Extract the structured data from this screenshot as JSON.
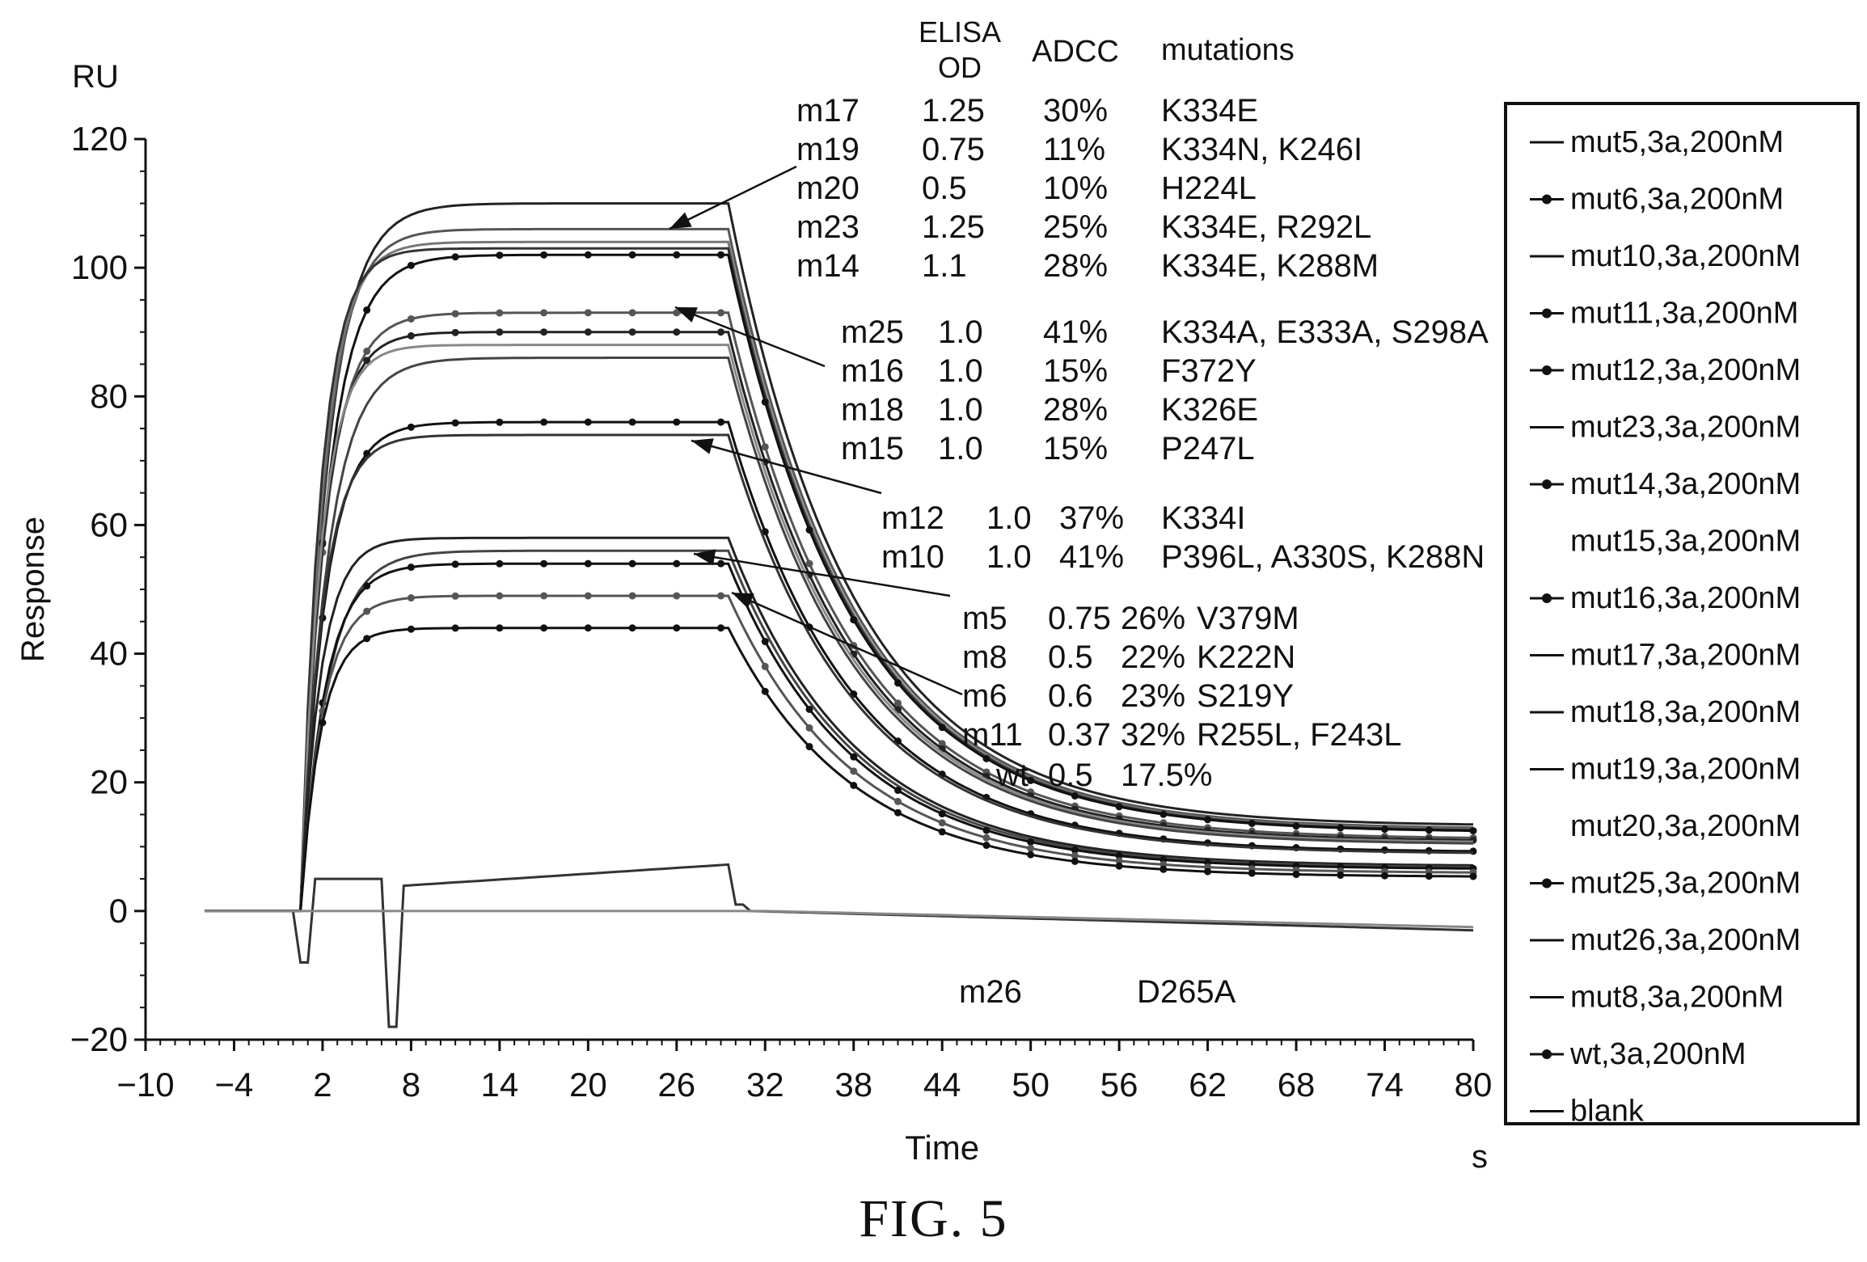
{
  "chart_data": {
    "type": "line",
    "xlabel": "Time",
    "x_unit": "s",
    "ylabel": "Response",
    "y_unit": "RU",
    "xlim": [
      -10,
      80
    ],
    "ylim": [
      -20,
      120
    ],
    "x_ticks": [
      -10,
      -4,
      2,
      8,
      14,
      20,
      26,
      32,
      38,
      44,
      50,
      56,
      62,
      68,
      74,
      80
    ],
    "y_ticks": [
      -20,
      0,
      20,
      40,
      60,
      80,
      100,
      120
    ],
    "legend_placement": "right",
    "legend": [
      "mut5,3a,200nM",
      "mut6,3a,200nM",
      "mut10,3a,200nM",
      "mut11,3a,200nM",
      "mut12,3a,200nM",
      "mut23,3a,200nM",
      "mut14,3a,200nM",
      "mut15,3a,200nM",
      "mut16,3a,200nM",
      "mut17,3a,200nM",
      "mut18,3a,200nM",
      "mut19,3a,200nM",
      "mut20,3a,200nM",
      "mut25,3a,200nM",
      "mut26,3a,200nM",
      "mut8,3a,200nM",
      "wt,3a,200nM",
      "blank"
    ],
    "table_headers": [
      "ELISA OD",
      "ADCC",
      "mutations"
    ],
    "annotations": [
      {
        "id": "m17",
        "elisa": "1.25",
        "adcc": "30%",
        "mutations": "K334E"
      },
      {
        "id": "m19",
        "elisa": "0.75",
        "adcc": "11%",
        "mutations": "K334N, K246I"
      },
      {
        "id": "m20",
        "elisa": "0.5",
        "adcc": "10%",
        "mutations": "H224L"
      },
      {
        "id": "m23",
        "elisa": "1.25",
        "adcc": "25%",
        "mutations": "K334E, R292L"
      },
      {
        "id": "m14",
        "elisa": "1.1",
        "adcc": "28%",
        "mutations": "K334E, K288M"
      },
      {
        "id": "m25",
        "elisa": "1.0",
        "adcc": "41%",
        "mutations": "K334A, E333A, S298A"
      },
      {
        "id": "m16",
        "elisa": "1.0",
        "adcc": "15%",
        "mutations": "F372Y"
      },
      {
        "id": "m18",
        "elisa": "1.0",
        "adcc": "28%",
        "mutations": "K326E"
      },
      {
        "id": "m15",
        "elisa": "1.0",
        "adcc": "15%",
        "mutations": "P247L"
      },
      {
        "id": "m12",
        "elisa": "1.0",
        "adcc": "37%",
        "mutations": "K334I"
      },
      {
        "id": "m10",
        "elisa": "1.0",
        "adcc": "41%",
        "mutations": "P396L, A330S, K288N"
      },
      {
        "id": "m5",
        "elisa": "0.75",
        "adcc": "26%",
        "mutations": "V379M"
      },
      {
        "id": "m8",
        "elisa": "0.5",
        "adcc": "22%",
        "mutations": "K222N"
      },
      {
        "id": "m6",
        "elisa": "0.6",
        "adcc": "23%",
        "mutations": "S219Y"
      },
      {
        "id": "m11",
        "elisa": "0.37",
        "adcc": "32%",
        "mutations": "R255L, F243L"
      },
      {
        "id": "wt",
        "elisa": "0.5",
        "adcc": "17.5%",
        "mutations": ""
      },
      {
        "id": "m26",
        "elisa": "",
        "adcc": "",
        "mutations": "D265A"
      }
    ],
    "series": [
      {
        "legend_index": 9,
        "plateau": 110,
        "marker": false,
        "color": "#222222"
      },
      {
        "legend_index": 11,
        "plateau": 106,
        "marker": false,
        "color": "#555555"
      },
      {
        "legend_index": 12,
        "plateau": 104,
        "marker": false,
        "color": "#777777"
      },
      {
        "legend_index": 5,
        "plateau": 103,
        "marker": false,
        "color": "#333333"
      },
      {
        "legend_index": 6,
        "plateau": 102,
        "marker": true,
        "color": "#111111"
      },
      {
        "legend_index": 13,
        "plateau": 93,
        "marker": true,
        "color": "#555555"
      },
      {
        "legend_index": 8,
        "plateau": 90,
        "marker": true,
        "color": "#222222"
      },
      {
        "legend_index": 10,
        "plateau": 88,
        "marker": false,
        "color": "#888888"
      },
      {
        "legend_index": 7,
        "plateau": 86,
        "marker": false,
        "color": "#444444"
      },
      {
        "legend_index": 4,
        "plateau": 76,
        "marker": true,
        "color": "#111111"
      },
      {
        "legend_index": 2,
        "plateau": 74,
        "marker": false,
        "color": "#333333"
      },
      {
        "legend_index": 0,
        "plateau": 58,
        "marker": false,
        "color": "#222222"
      },
      {
        "legend_index": 15,
        "plateau": 56,
        "marker": false,
        "color": "#444444"
      },
      {
        "legend_index": 1,
        "plateau": 54,
        "marker": true,
        "color": "#111111"
      },
      {
        "legend_index": 3,
        "plateau": 49,
        "marker": true,
        "color": "#555555"
      },
      {
        "legend_index": 16,
        "plateau": 44,
        "marker": true,
        "color": "#111111"
      },
      {
        "legend_index": 14,
        "plateau": 5,
        "marker": false,
        "color": "#333333"
      },
      {
        "legend_index": 17,
        "plateau": 0,
        "marker": false,
        "color": "#888888"
      }
    ]
  },
  "figure": {
    "caption": "FIG. 5"
  }
}
